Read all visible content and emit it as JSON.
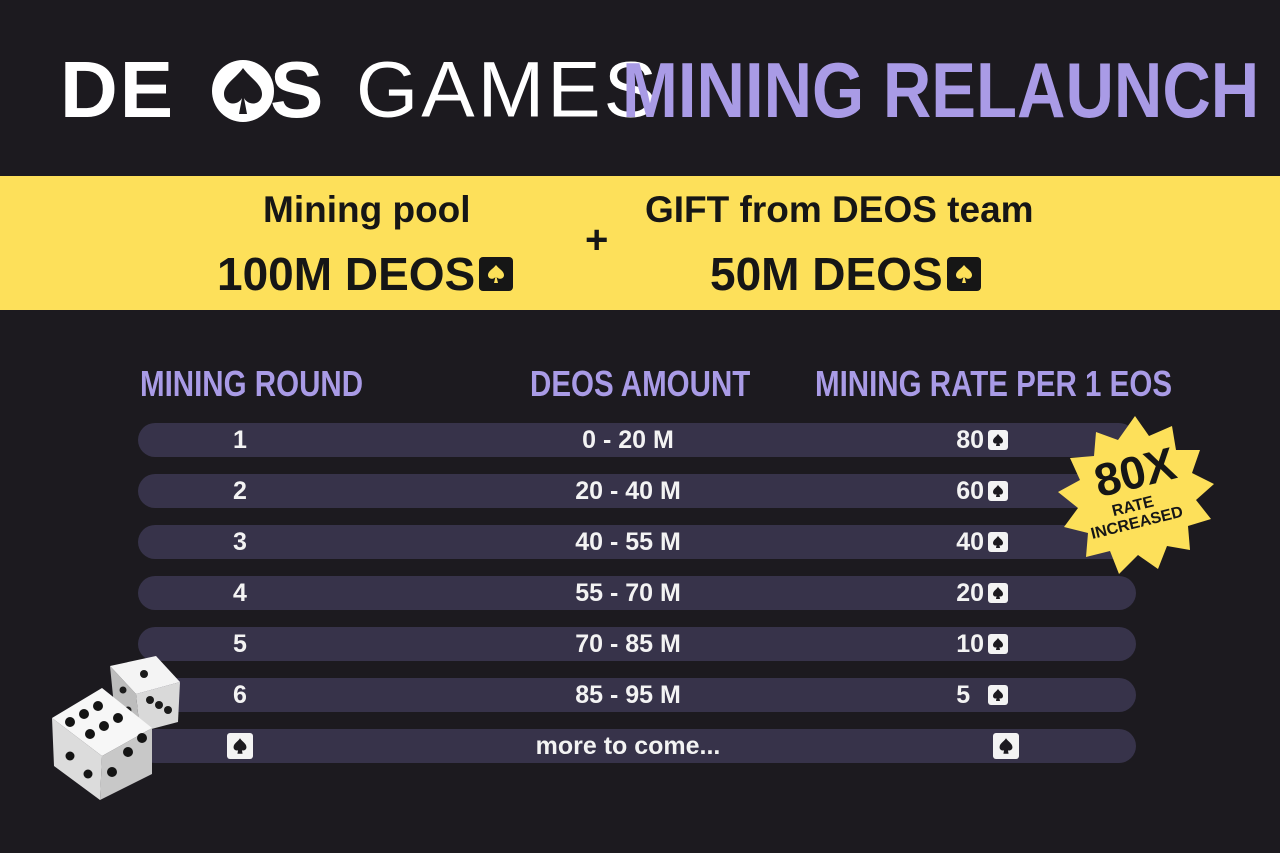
{
  "header": {
    "brand_bold": "DE",
    "brand_s": "S",
    "brand_light": "GAMES",
    "headline": "MINING RELAUNCH"
  },
  "band": {
    "pool_label": "Mining pool",
    "pool_amount": "100M DEOS",
    "plus": "+",
    "gift_label": "GIFT from DEOS team",
    "gift_amount": "50M DEOS"
  },
  "table": {
    "headers": {
      "round": "MINING ROUND",
      "amount": "DEOS AMOUNT",
      "rate": "MINING RATE PER 1 EOS"
    },
    "rows": [
      {
        "round": "1",
        "amount": "0 - 20 M",
        "rate": "80"
      },
      {
        "round": "2",
        "amount": "20 - 40 M",
        "rate": "60"
      },
      {
        "round": "3",
        "amount": "40 - 55 M",
        "rate": "40"
      },
      {
        "round": "4",
        "amount": "55 - 70 M",
        "rate": "20"
      },
      {
        "round": "5",
        "amount": "70 - 85 M",
        "rate": "10"
      },
      {
        "round": "6",
        "amount": "85 - 95 M",
        "rate": "5"
      }
    ],
    "final_row": {
      "amount": "more to come..."
    }
  },
  "badge": {
    "big": "80X",
    "line1": "RATE",
    "line2": "INCREASED"
  },
  "colors": {
    "background": "#1c1a1f",
    "accent_purple": "#a99be6",
    "band_yellow": "#fde05a",
    "row_fill": "#37334a"
  },
  "icons": {
    "spade": "spade-icon",
    "dice": "dice-icon"
  }
}
